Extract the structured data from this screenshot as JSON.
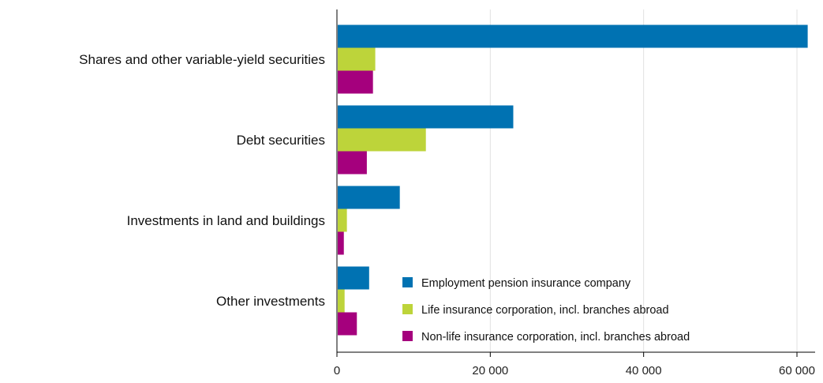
{
  "chart_data": {
    "type": "bar",
    "orientation": "horizontal",
    "categories": [
      "Shares and other variable-yield securities",
      "Debt securities",
      "Investments in land and buildings",
      "Other investments"
    ],
    "series": [
      {
        "name": "Employment pension insurance company",
        "color": "#0072b2",
        "values": [
          61400,
          23000,
          8200,
          4200
        ]
      },
      {
        "name": "Life insurance corporation, incl. branches abroad",
        "color": "#bdd43a",
        "values": [
          5000,
          11600,
          1300,
          1000
        ]
      },
      {
        "name": "Non-life insurance corporation, incl. branches abroad",
        "color": "#a5007d",
        "values": [
          4700,
          3900,
          900,
          2600
        ]
      }
    ],
    "xlim": [
      0,
      62000
    ],
    "xticks": [
      0,
      20000,
      40000,
      60000
    ],
    "xtick_labels": [
      "0",
      "20 000",
      "40 000",
      "60 000"
    ],
    "grid": "vertical",
    "legend_position": "bottom-right"
  }
}
